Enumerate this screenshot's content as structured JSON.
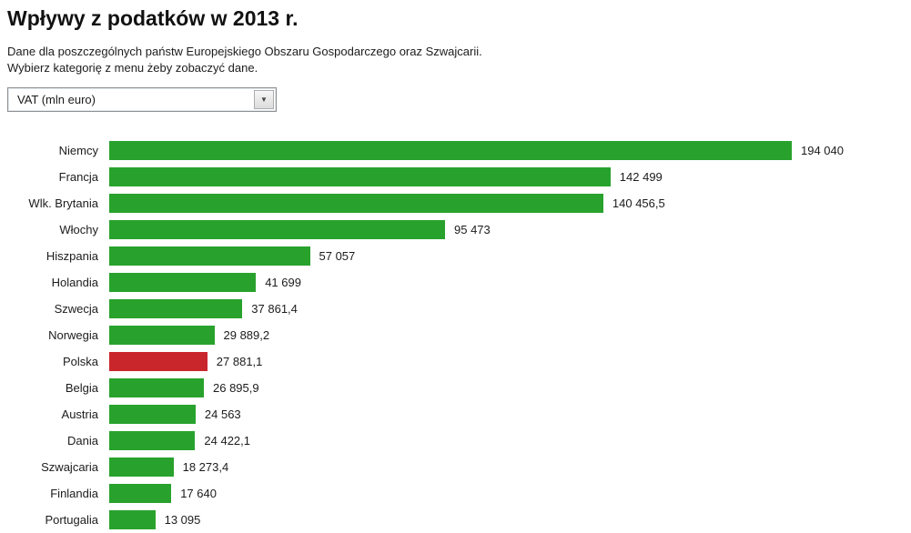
{
  "page": {
    "title": "Wpływy z podatków w 2013 r.",
    "subtitle_line1": "Dane dla poszczególnych państw Europejskiego Obszaru Gospodarczego oraz Szwajcarii.",
    "subtitle_line2": "Wybierz kategorię z menu żeby zobaczyć dane."
  },
  "category_select": {
    "selected_option": "VAT (mln euro)",
    "chevron_icon": "▼"
  },
  "chart_data": {
    "type": "bar",
    "orientation": "horizontal",
    "title": "Wpływy z podatków w 2013 r.",
    "unit": "mln euro",
    "categories": [
      "Niemcy",
      "Francja",
      "Wlk. Brytania",
      "Włochy",
      "Hiszpania",
      "Holandia",
      "Szwecja",
      "Norwegia",
      "Polska",
      "Belgia",
      "Austria",
      "Dania",
      "Szwajcaria",
      "Finlandia",
      "Portugalia"
    ],
    "values": [
      194040,
      142499,
      140456.5,
      95473,
      57057,
      41699,
      37861.4,
      29889.2,
      27881.1,
      26895.9,
      24563,
      24422.1,
      18273.4,
      17640,
      13095
    ],
    "value_labels": [
      "194 040",
      "142 499",
      "140 456,5",
      "95 473",
      "57 057",
      "41 699",
      "37 861,4",
      "29 889,2",
      "27 881,1",
      "26 895,9",
      "24 563",
      "24 422,1",
      "18 273,4",
      "17 640",
      "13 095"
    ],
    "highlighted_category": "Polska",
    "bar_color": "#28a22d",
    "highlight_color": "#c9262c",
    "xlim": [
      0,
      194040
    ],
    "grid": false,
    "legend": false
  }
}
